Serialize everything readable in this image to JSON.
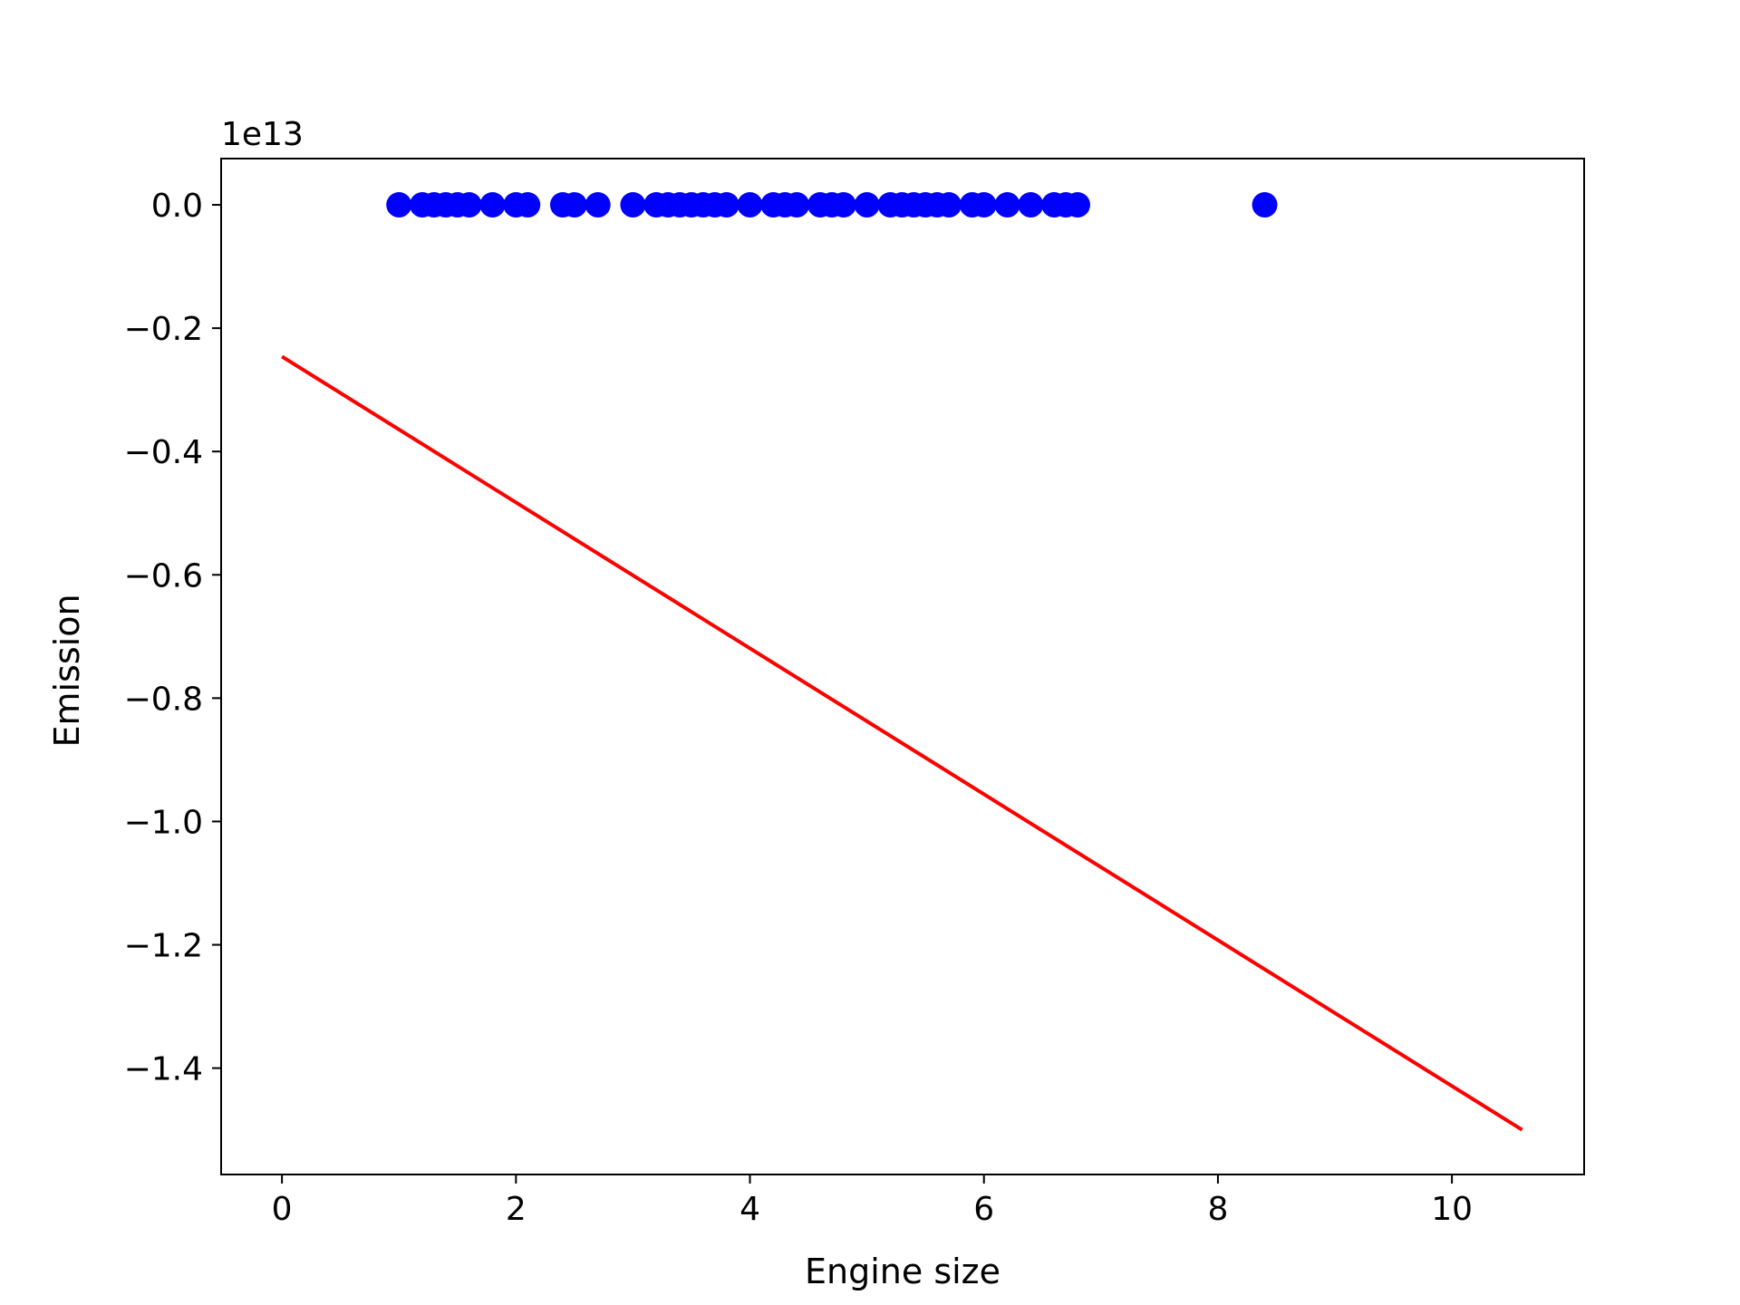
{
  "chart_data": {
    "type": "scatter",
    "title": "",
    "xlabel": "Engine size",
    "ylabel": "Emission",
    "y_offset_label": "1e13",
    "xlim": [
      -0.52,
      11.13
    ],
    "ylim": [
      -1.5725,
      0.075
    ],
    "x_ticks": [
      0,
      2,
      4,
      6,
      8,
      10
    ],
    "x_tick_labels": [
      "0",
      "2",
      "4",
      "6",
      "8",
      "10"
    ],
    "y_ticks": [
      0.0,
      -0.2,
      -0.4,
      -0.6,
      -0.8,
      -1.0,
      -1.2,
      -1.4
    ],
    "y_tick_labels": [
      "0.0",
      "−0.2",
      "−0.4",
      "−0.6",
      "−0.8",
      "−1.0",
      "−1.2",
      "−1.4"
    ],
    "grid": false,
    "series": [
      {
        "kind": "scatter",
        "color": "#0000ff",
        "x": [
          1.0,
          1.2,
          1.3,
          1.4,
          1.5,
          1.6,
          1.8,
          2.0,
          2.1,
          2.4,
          2.5,
          2.7,
          3.0,
          3.2,
          3.3,
          3.4,
          3.5,
          3.6,
          3.7,
          3.8,
          4.0,
          4.2,
          4.3,
          4.4,
          4.6,
          4.7,
          4.8,
          5.0,
          5.2,
          5.3,
          5.4,
          5.5,
          5.6,
          5.7,
          5.9,
          6.0,
          6.2,
          6.4,
          6.6,
          6.7,
          6.8,
          8.4
        ],
        "y": [
          0,
          0,
          0,
          0,
          0,
          0,
          0,
          0,
          0,
          0,
          0,
          0,
          0,
          0,
          0,
          0,
          0,
          0,
          0,
          0,
          0,
          0,
          0,
          0,
          0,
          0,
          0,
          0,
          0,
          0,
          0,
          0,
          0,
          0,
          0,
          0,
          0,
          0,
          0,
          0,
          0,
          0
        ]
      },
      {
        "kind": "line",
        "color": "#ff0000",
        "x": [
          0,
          10.6
        ],
        "y": [
          -0.246,
          -1.5
        ]
      }
    ]
  }
}
